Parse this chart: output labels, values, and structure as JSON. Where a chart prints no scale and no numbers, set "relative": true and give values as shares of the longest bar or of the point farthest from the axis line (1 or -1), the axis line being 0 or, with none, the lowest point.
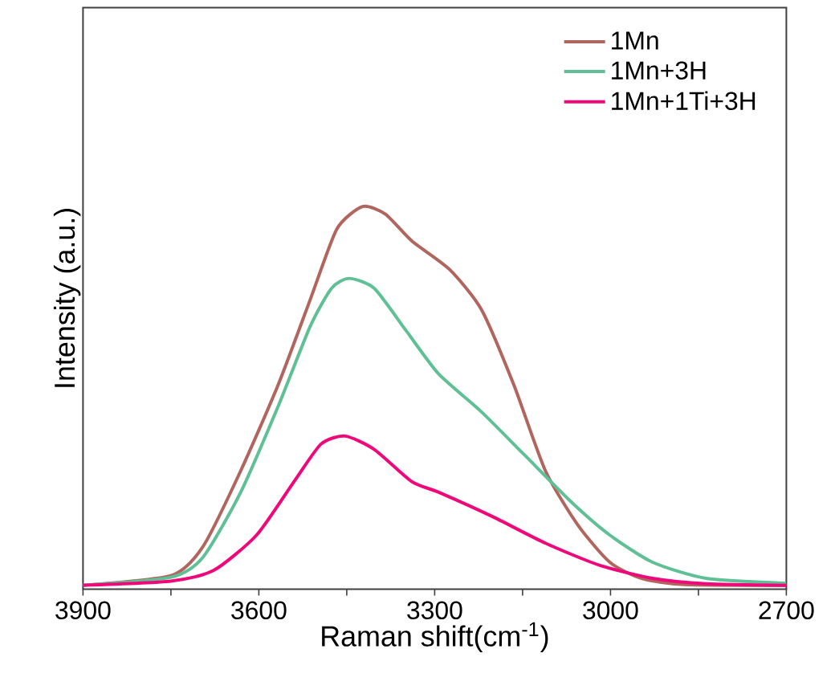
{
  "chart_data": {
    "type": "line",
    "relative": true,
    "xlabel": "Raman shift(cm$^{-1}$)",
    "ylabel": "Intensity (a.u.)",
    "xlim": [
      3900,
      2700
    ],
    "xticks": [
      3900,
      {
        "value": 3750,
        "label": null
      },
      3600,
      {
        "value": 3450,
        "label": null
      },
      3300,
      {
        "value": 3150,
        "label": null
      },
      3000,
      {
        "value": 2850,
        "label": null
      },
      2700
    ],
    "legend": "top right",
    "marker": "none",
    "line_style": "solid",
    "series": [
      {
        "name": "1Mn",
        "color": "#b0655e",
        "x": [
          3900,
          3750,
          3695,
          3631,
          3567,
          3512,
          3467,
          3423,
          3384,
          3339,
          3275,
          3220,
          3165,
          3111,
          3056,
          3001,
          2947,
          2874,
          2700
        ],
        "values": [
          0.01,
          0.035,
          0.112,
          0.309,
          0.534,
          0.758,
          0.941,
          1.0,
          0.98,
          0.91,
          0.836,
          0.73,
          0.534,
          0.309,
          0.168,
          0.07,
          0.028,
          0.012,
          0.01
        ]
      },
      {
        "name": "1Mn+3H",
        "color": "#5fbf95",
        "x": [
          3900,
          3750,
          3695,
          3631,
          3567,
          3512,
          3476,
          3446,
          3403,
          3348,
          3293,
          3220,
          3147,
          3065,
          3001,
          2928,
          2837,
          2700
        ],
        "values": [
          0.01,
          0.031,
          0.084,
          0.253,
          0.478,
          0.688,
          0.786,
          0.812,
          0.786,
          0.674,
          0.562,
          0.463,
          0.351,
          0.225,
          0.141,
          0.07,
          0.028,
          0.015
        ]
      },
      {
        "name": "1Mn+1Ti+3H",
        "color": "#f0087a",
        "x": [
          3900,
          3750,
          3677,
          3604,
          3540,
          3494,
          3453,
          3403,
          3339,
          3293,
          3202,
          3111,
          3020,
          2928,
          2837,
          2700
        ],
        "values": [
          0.01,
          0.021,
          0.049,
          0.141,
          0.281,
          0.379,
          0.4,
          0.365,
          0.281,
          0.253,
          0.19,
          0.12,
          0.063,
          0.028,
          0.014,
          0.01
        ]
      }
    ]
  }
}
